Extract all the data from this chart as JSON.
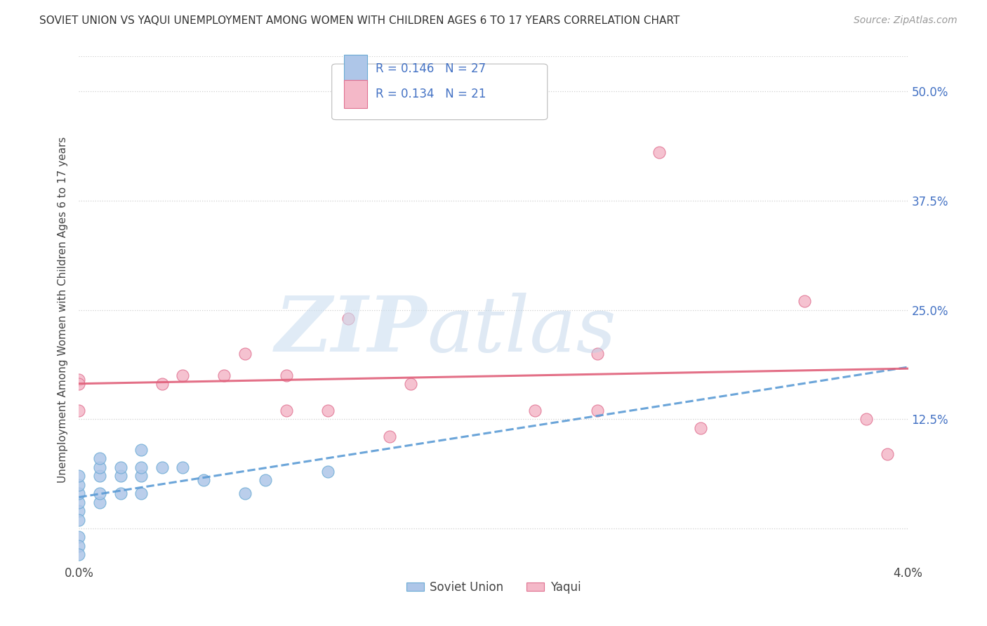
{
  "title": "SOVIET UNION VS YAQUI UNEMPLOYMENT AMONG WOMEN WITH CHILDREN AGES 6 TO 17 YEARS CORRELATION CHART",
  "source": "Source: ZipAtlas.com",
  "ylabel": "Unemployment Among Women with Children Ages 6 to 17 years",
  "xlim": [
    0.0,
    0.04
  ],
  "ylim": [
    -0.04,
    0.54
  ],
  "r_soviet": 0.146,
  "n_soviet": 27,
  "r_yaqui": 0.134,
  "n_yaqui": 21,
  "soviet_color": "#aec6e8",
  "soviet_edge_color": "#6aaad4",
  "soviet_line_color": "#5b9bd5",
  "yaqui_color": "#f4b8c8",
  "yaqui_edge_color": "#e07090",
  "yaqui_line_color": "#e0607a",
  "grid_color": "#d0d0d0",
  "background_color": "#ffffff",
  "soviet_x": [
    0.0,
    0.0,
    0.0,
    0.0,
    0.0,
    0.0,
    0.0,
    0.0,
    0.0,
    0.001,
    0.001,
    0.001,
    0.001,
    0.001,
    0.002,
    0.002,
    0.002,
    0.003,
    0.003,
    0.003,
    0.003,
    0.004,
    0.005,
    0.006,
    0.008,
    0.009,
    0.012
  ],
  "soviet_y": [
    0.02,
    0.03,
    0.04,
    0.05,
    0.06,
    -0.01,
    -0.02,
    -0.03,
    0.01,
    0.03,
    0.04,
    0.06,
    0.07,
    0.08,
    0.04,
    0.06,
    0.07,
    0.04,
    0.06,
    0.07,
    0.09,
    0.07,
    0.07,
    0.055,
    0.04,
    0.055,
    0.065
  ],
  "yaqui_x": [
    0.0,
    0.0,
    0.0,
    0.004,
    0.005,
    0.007,
    0.008,
    0.01,
    0.01,
    0.012,
    0.013,
    0.015,
    0.016,
    0.022,
    0.025,
    0.025,
    0.028,
    0.03,
    0.035,
    0.038,
    0.039
  ],
  "yaqui_y": [
    0.17,
    0.165,
    0.135,
    0.165,
    0.175,
    0.175,
    0.2,
    0.175,
    0.135,
    0.135,
    0.24,
    0.105,
    0.165,
    0.135,
    0.2,
    0.135,
    0.43,
    0.115,
    0.26,
    0.125,
    0.085
  ],
  "ytick_positions": [
    0.0,
    0.125,
    0.25,
    0.375,
    0.5
  ],
  "ytick_labels": [
    "",
    "12.5%",
    "25.0%",
    "37.5%",
    "50.0%"
  ]
}
